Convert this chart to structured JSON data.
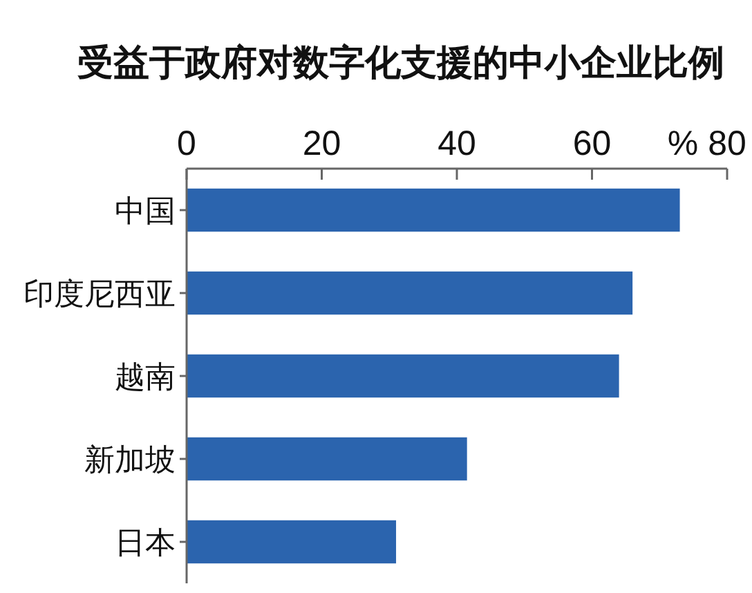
{
  "chart_data": {
    "type": "bar",
    "orientation": "horizontal",
    "title": "受益于政府对数字化支援的中小企业比例",
    "xlabel": "%",
    "categories": [
      "中国",
      "印度尼西亚",
      "越南",
      "新加坡",
      "日本"
    ],
    "values": [
      73,
      66,
      64,
      41.5,
      31
    ],
    "color": "#2b64ae",
    "xlim": [
      0,
      80
    ],
    "xticks": [
      0,
      20,
      40,
      60,
      80
    ]
  }
}
